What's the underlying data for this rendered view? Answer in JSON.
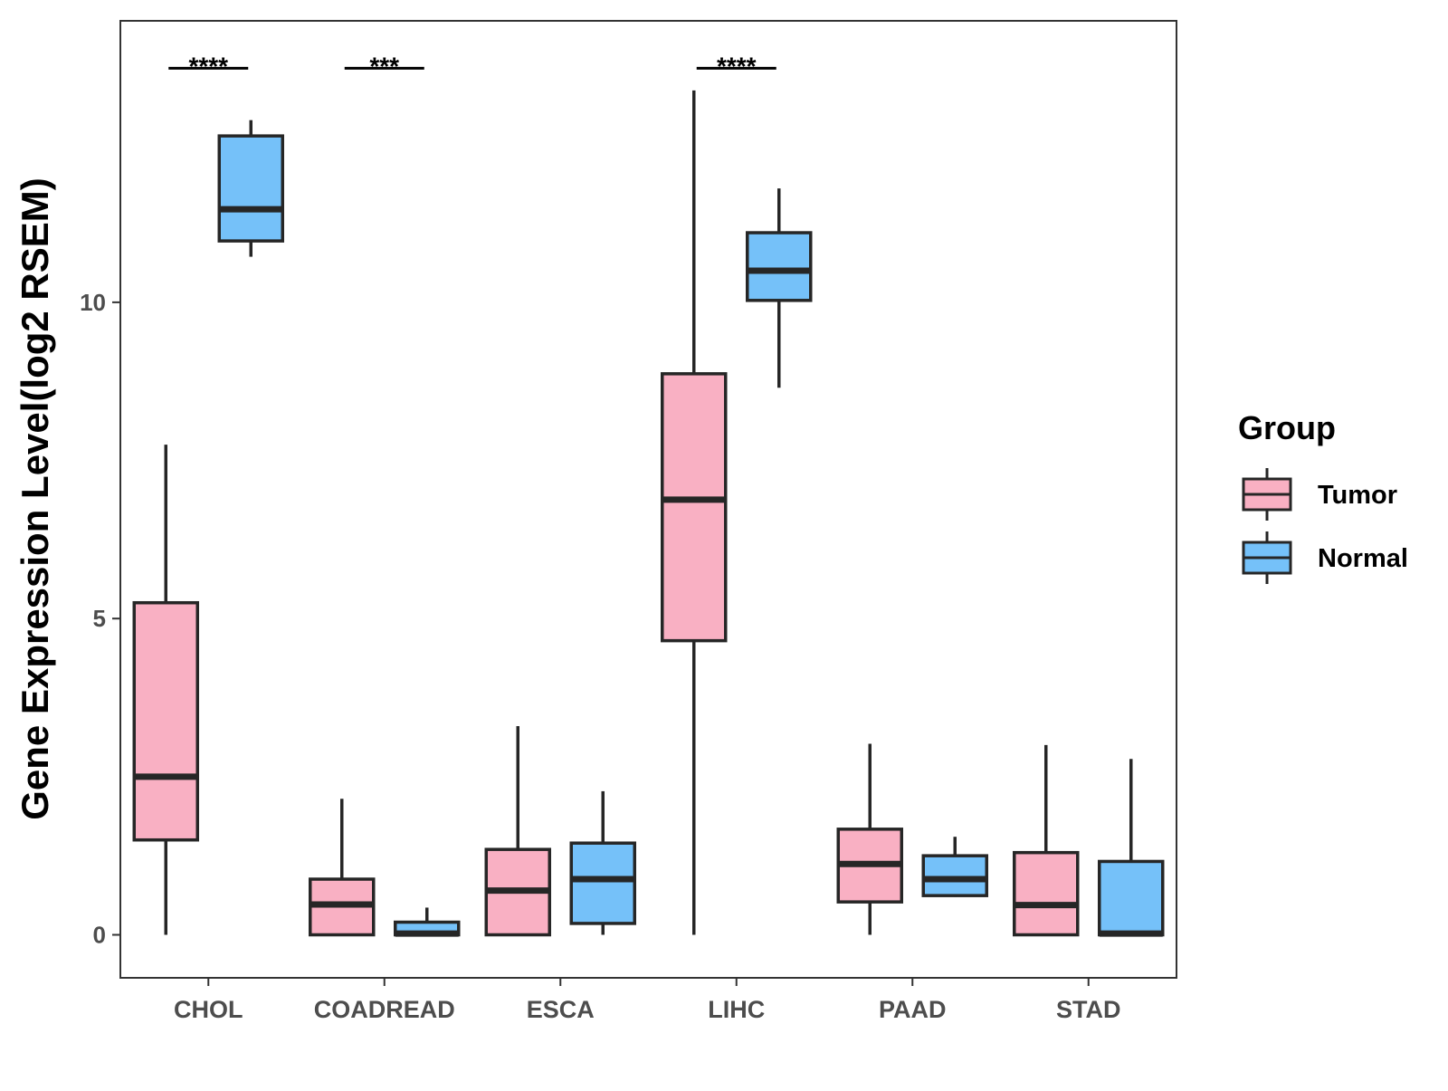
{
  "chart_data": {
    "type": "boxplot",
    "title": "",
    "xlabel": "",
    "ylabel": "Gene Expression Level(log2 RSEM)",
    "ylim": [
      -0.68,
      14.45
    ],
    "yticks": [
      0,
      5,
      10
    ],
    "ytick_labels": [
      "0",
      "5",
      "10"
    ],
    "grid": false,
    "categories": [
      "CHOL",
      "COADREAD",
      "ESCA",
      "LIHC",
      "PAAD",
      "STAD"
    ],
    "legend": {
      "title": "Group",
      "position": "right",
      "entries": [
        "Tumor",
        "Normal"
      ]
    },
    "series": [
      {
        "name": "Tumor",
        "color": "#F9B0C3",
        "boxes": [
          {
            "category": "CHOL",
            "whisker_low": 0.0,
            "q1": 1.5,
            "median": 2.5,
            "q3": 5.25,
            "whisker_high": 7.75
          },
          {
            "category": "COADREAD",
            "whisker_low": 0.0,
            "q1": 0.0,
            "median": 0.48,
            "q3": 0.88,
            "whisker_high": 2.15
          },
          {
            "category": "ESCA",
            "whisker_low": 0.0,
            "q1": 0.0,
            "median": 0.7,
            "q3": 1.35,
            "whisker_high": 3.3
          },
          {
            "category": "LIHC",
            "whisker_low": 0.0,
            "q1": 4.65,
            "median": 6.88,
            "q3": 8.87,
            "whisker_high": 13.35
          },
          {
            "category": "PAAD",
            "whisker_low": 0.0,
            "q1": 0.52,
            "median": 1.12,
            "q3": 1.67,
            "whisker_high": 3.02
          },
          {
            "category": "STAD",
            "whisker_low": 0.0,
            "q1": 0.0,
            "median": 0.47,
            "q3": 1.3,
            "whisker_high": 3.0
          }
        ]
      },
      {
        "name": "Normal",
        "color": "#75C1F9",
        "boxes": [
          {
            "category": "CHOL",
            "whisker_low": 10.72,
            "q1": 10.97,
            "median": 11.47,
            "q3": 12.63,
            "whisker_high": 12.88
          },
          {
            "category": "COADREAD",
            "whisker_low": 0.0,
            "q1": 0.0,
            "median": 0.02,
            "q3": 0.2,
            "whisker_high": 0.43
          },
          {
            "category": "ESCA",
            "whisker_low": 0.0,
            "q1": 0.18,
            "median": 0.88,
            "q3": 1.45,
            "whisker_high": 2.27
          },
          {
            "category": "LIHC",
            "whisker_low": 8.65,
            "q1": 10.03,
            "median": 10.5,
            "q3": 11.1,
            "whisker_high": 11.8
          },
          {
            "category": "PAAD",
            "whisker_low": 0.6,
            "q1": 0.62,
            "median": 0.88,
            "q3": 1.25,
            "whisker_high": 1.55
          },
          {
            "category": "STAD",
            "whisker_low": 0.0,
            "q1": 0.0,
            "median": 0.02,
            "q3": 1.16,
            "whisker_high": 2.78
          }
        ]
      }
    ],
    "annotations": [
      {
        "category": "CHOL",
        "text": "****",
        "y": 13.7
      },
      {
        "category": "COADREAD",
        "text": "***",
        "y": 13.7
      },
      {
        "category": "LIHC",
        "text": "****",
        "y": 13.7
      }
    ]
  }
}
